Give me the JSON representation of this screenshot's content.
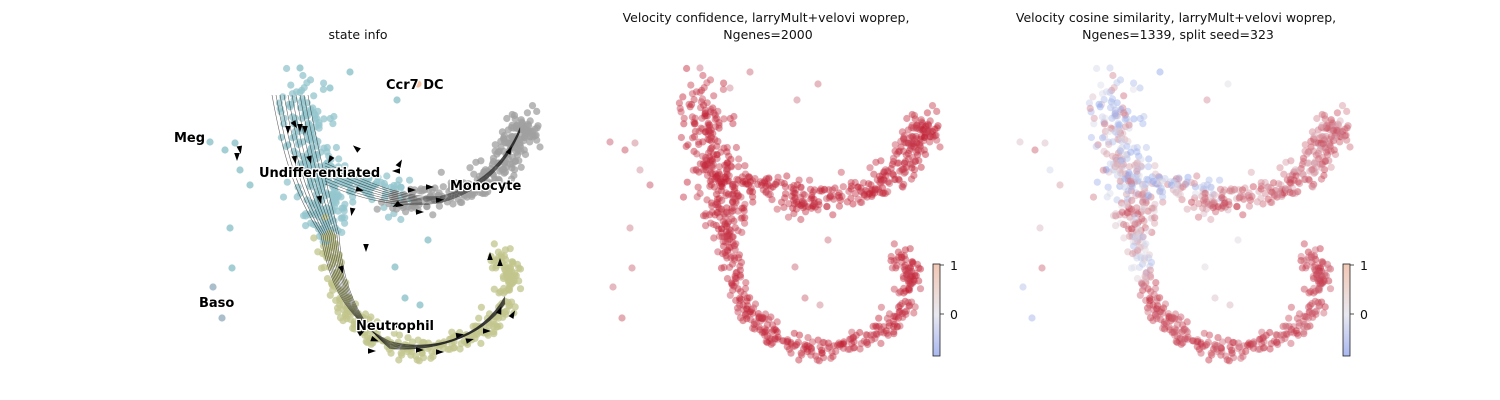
{
  "chart_data": [
    {
      "type": "scatter",
      "title": "state info",
      "xlabel": "",
      "ylabel": "",
      "axes_visible": false,
      "clusters": [
        {
          "name": "Ccr7 DC",
          "color": "#f5b895"
        },
        {
          "name": "Meg",
          "color": "#8fc5cc"
        },
        {
          "name": "Undifferentiated",
          "color": "#93c6cd"
        },
        {
          "name": "Monocyte",
          "color": "#a0a0a0"
        },
        {
          "name": "Baso",
          "color": "#9bb3c2"
        },
        {
          "name": "Neutrophil",
          "color": "#c2c68c"
        }
      ],
      "streamlines": true
    },
    {
      "type": "scatter",
      "title": "Velocity confidence, larryMult+velovi woprep,\nNgenes=2000",
      "xlabel": "",
      "ylabel": "",
      "axes_visible": false,
      "colormap": "coolwarm",
      "colorbar": {
        "ticks": [
          "1",
          "0"
        ],
        "range": [
          -0.8,
          1.0
        ]
      },
      "dominant_value": "high (near 1)"
    },
    {
      "type": "scatter",
      "title": "Velocity cosine similarity, larryMult+velovi woprep,\nNgenes=1339, split seed=323",
      "xlabel": "",
      "ylabel": "",
      "axes_visible": false,
      "colormap": "coolwarm",
      "colorbar": {
        "ticks": [
          "1",
          "0"
        ],
        "range": [
          -0.8,
          1.0
        ]
      },
      "dominant_value": "mixed; negative in upper-left stem, high in neutrophil branch"
    }
  ],
  "colors": {
    "undiff": "#93c6cd",
    "monocyte": "#a0a0a0",
    "neutrophil": "#c2c68c",
    "baso": "#9bb3c2",
    "ccr7": "#f5b895",
    "red": "#c0172b",
    "blue": "#8ea8f2"
  }
}
